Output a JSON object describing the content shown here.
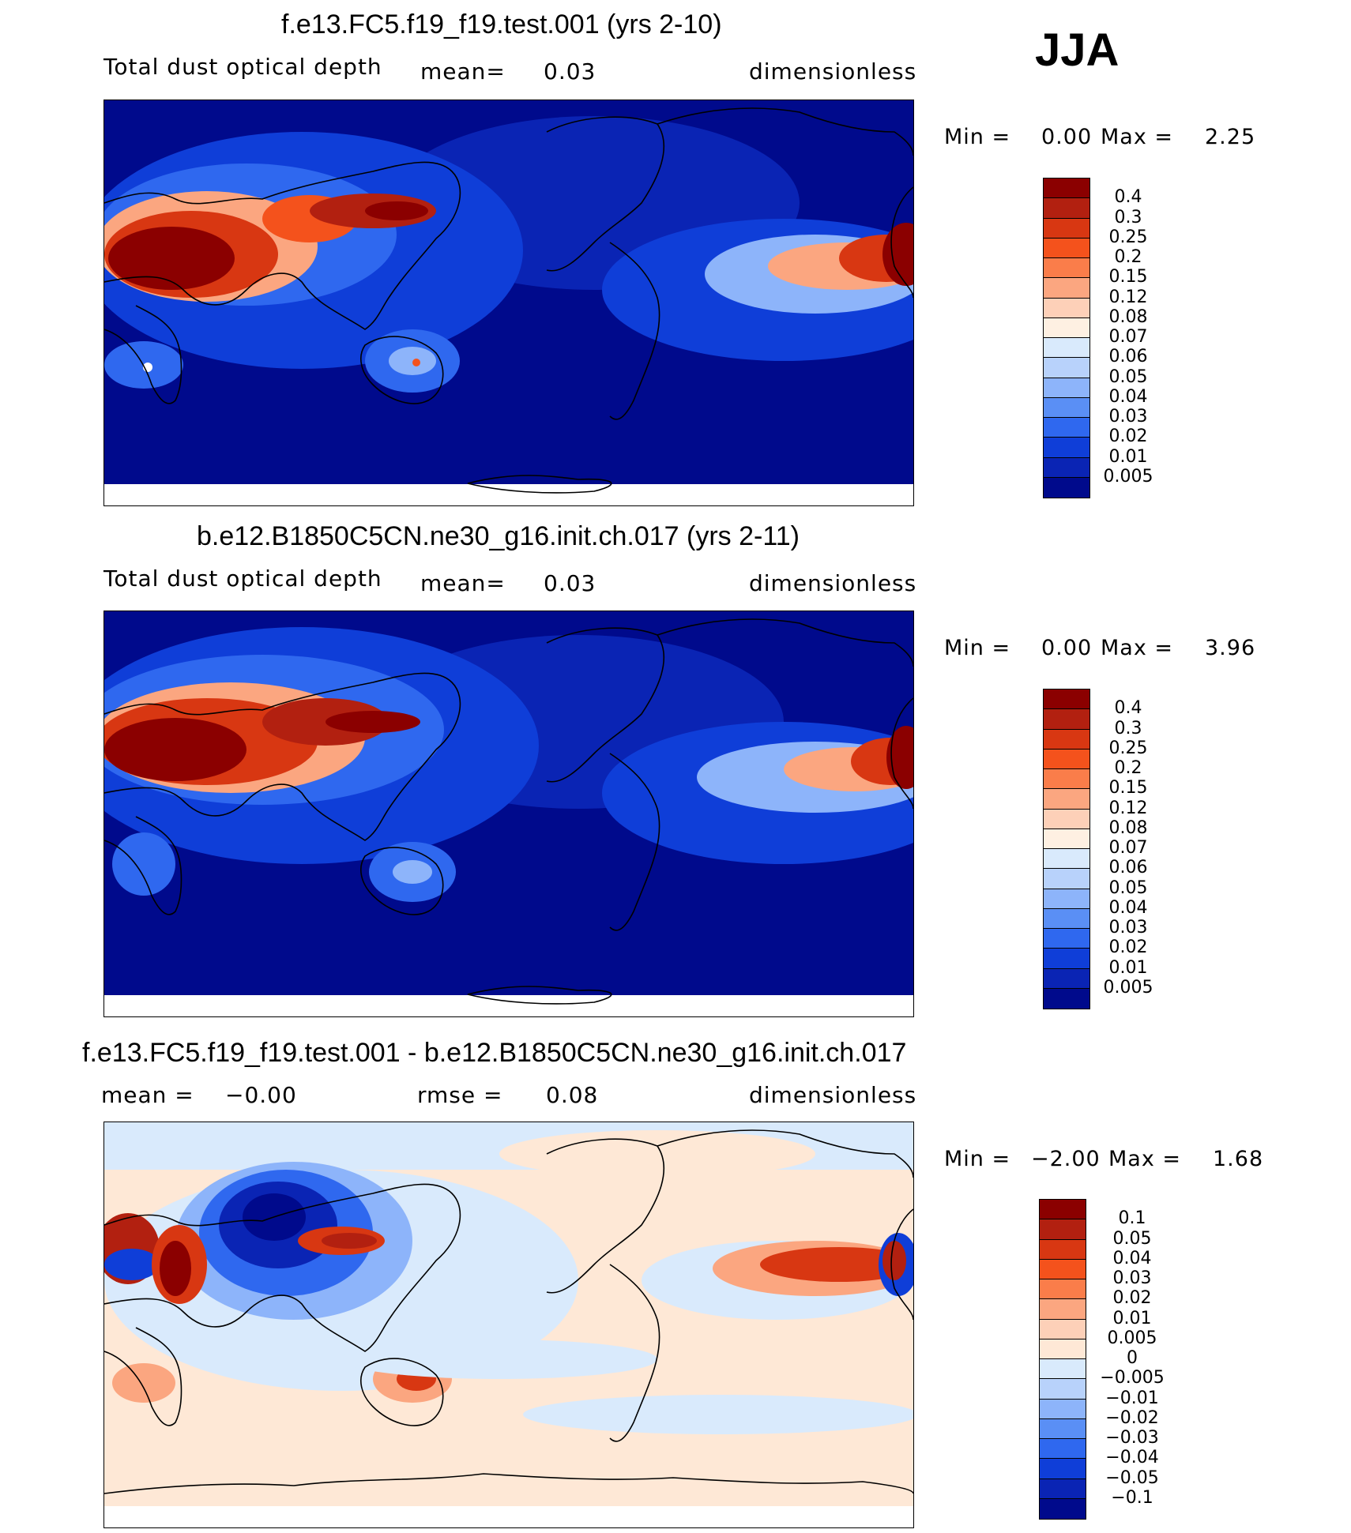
{
  "season": "JJA",
  "panels": [
    {
      "title": "f.e13.FC5.f19_f19.test.001 (yrs 2-10)",
      "variable": "Total dust optical depth",
      "stat1_label": "mean=",
      "stat1_value": "0.03",
      "units": "dimensionless",
      "min_label": "Min =",
      "min_value": "0.00",
      "max_label": "Max =",
      "max_value": "2.25",
      "colorbar_labels": [
        "0.4",
        "0.3",
        "0.25",
        "0.2",
        "0.15",
        "0.12",
        "0.08",
        "0.07",
        "0.06",
        "0.05",
        "0.04",
        "0.03",
        "0.02",
        "0.01",
        "0.005"
      ],
      "colorbar_colors": [
        "#8b0000",
        "#b22010",
        "#d83712",
        "#f4521c",
        "#fa7d4a",
        "#fba680",
        "#fdd0b8",
        "#fef0e2",
        "#d9eafc",
        "#b8d2fb",
        "#8db4fa",
        "#5a8ff5",
        "#2f68ef",
        "#0f3ed8",
        "#0a24b4",
        "#000a8c"
      ]
    },
    {
      "title": "b.e12.B1850C5CN.ne30_g16.init.ch.017 (yrs 2-11)",
      "variable": "Total dust optical depth",
      "stat1_label": "mean=",
      "stat1_value": "0.03",
      "units": "dimensionless",
      "min_label": "Min =",
      "min_value": "0.00",
      "max_label": "Max =",
      "max_value": "3.96",
      "colorbar_labels": [
        "0.4",
        "0.3",
        "0.25",
        "0.2",
        "0.15",
        "0.12",
        "0.08",
        "0.07",
        "0.06",
        "0.05",
        "0.04",
        "0.03",
        "0.02",
        "0.01",
        "0.005"
      ],
      "colorbar_colors": [
        "#8b0000",
        "#b22010",
        "#d83712",
        "#f4521c",
        "#fa7d4a",
        "#fba680",
        "#fdd0b8",
        "#fef0e2",
        "#d9eafc",
        "#b8d2fb",
        "#8db4fa",
        "#5a8ff5",
        "#2f68ef",
        "#0f3ed8",
        "#0a24b4",
        "#000a8c"
      ]
    },
    {
      "title": "f.e13.FC5.f19_f19.test.001 - b.e12.B1850C5CN.ne30_g16.init.ch.017",
      "stat1_label": "mean =",
      "stat1_value": "−0.00",
      "stat2_label": "rmse =",
      "stat2_value": "0.08",
      "units": "dimensionless",
      "min_label": "Min =",
      "min_value": "−2.00",
      "max_label": "Max =",
      "max_value": "1.68",
      "colorbar_labels": [
        "0.1",
        "0.05",
        "0.04",
        "0.03",
        "0.02",
        "0.01",
        "0.005",
        "0",
        "−0.005",
        "−0.01",
        "−0.02",
        "−0.03",
        "−0.04",
        "−0.05",
        "−0.1"
      ],
      "colorbar_colors": [
        "#8b0000",
        "#b22010",
        "#d83712",
        "#f4521c",
        "#fa7d4a",
        "#fba680",
        "#fdd0b8",
        "#fee8d6",
        "#d9eafc",
        "#b8d2fb",
        "#8db4fa",
        "#5a8ff5",
        "#2f68ef",
        "#0f3ed8",
        "#0a24b4",
        "#000a8c"
      ]
    }
  ]
}
